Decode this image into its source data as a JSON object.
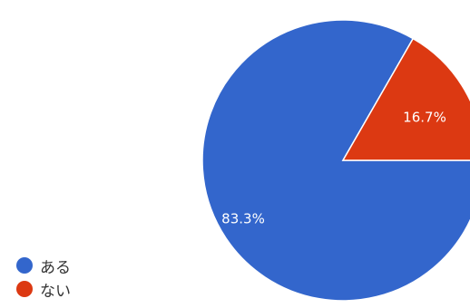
{
  "chart_data": {
    "type": "pie",
    "title": "",
    "slices": [
      {
        "label": "ある",
        "value": 83.3,
        "display": "83.3%",
        "color": "#3366cc"
      },
      {
        "label": "ない",
        "value": 16.7,
        "display": "16.7%",
        "color": "#dc3912"
      }
    ],
    "legend_position": "bottom-left"
  }
}
